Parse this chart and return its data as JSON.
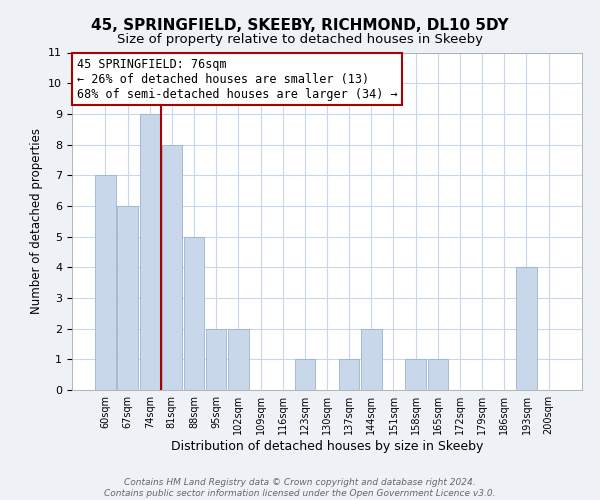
{
  "title": "45, SPRINGFIELD, SKEEBY, RICHMOND, DL10 5DY",
  "subtitle": "Size of property relative to detached houses in Skeeby",
  "xlabel": "Distribution of detached houses by size in Skeeby",
  "ylabel": "Number of detached properties",
  "categories": [
    "60sqm",
    "67sqm",
    "74sqm",
    "81sqm",
    "88sqm",
    "95sqm",
    "102sqm",
    "109sqm",
    "116sqm",
    "123sqm",
    "130sqm",
    "137sqm",
    "144sqm",
    "151sqm",
    "158sqm",
    "165sqm",
    "172sqm",
    "179sqm",
    "186sqm",
    "193sqm",
    "200sqm"
  ],
  "values": [
    7,
    6,
    9,
    8,
    5,
    2,
    2,
    0,
    0,
    1,
    0,
    1,
    2,
    0,
    1,
    1,
    0,
    0,
    0,
    4,
    0
  ],
  "bar_color": "#c8d8ea",
  "bar_edge_color": "#9ab4cc",
  "property_line_x": 2.5,
  "property_label": "45 SPRINGFIELD: 76sqm",
  "pct_smaller": 26,
  "n_smaller": 13,
  "pct_larger_semi": 68,
  "n_larger_semi": 34,
  "annotation_line_color": "#aa0000",
  "ylim": [
    0,
    11
  ],
  "yticks": [
    0,
    1,
    2,
    3,
    4,
    5,
    6,
    7,
    8,
    9,
    10,
    11
  ],
  "footer_line1": "Contains HM Land Registry data © Crown copyright and database right 2024.",
  "footer_line2": "Contains public sector information licensed under the Open Government Licence v3.0.",
  "background_color": "#eef2f7",
  "plot_bg_color": "#ffffff",
  "grid_color": "#c8d8ea",
  "title_fontsize": 11,
  "subtitle_fontsize": 9.5,
  "xlabel_fontsize": 9,
  "ylabel_fontsize": 8.5,
  "footer_fontsize": 6.5,
  "annot_fontsize": 8.5
}
